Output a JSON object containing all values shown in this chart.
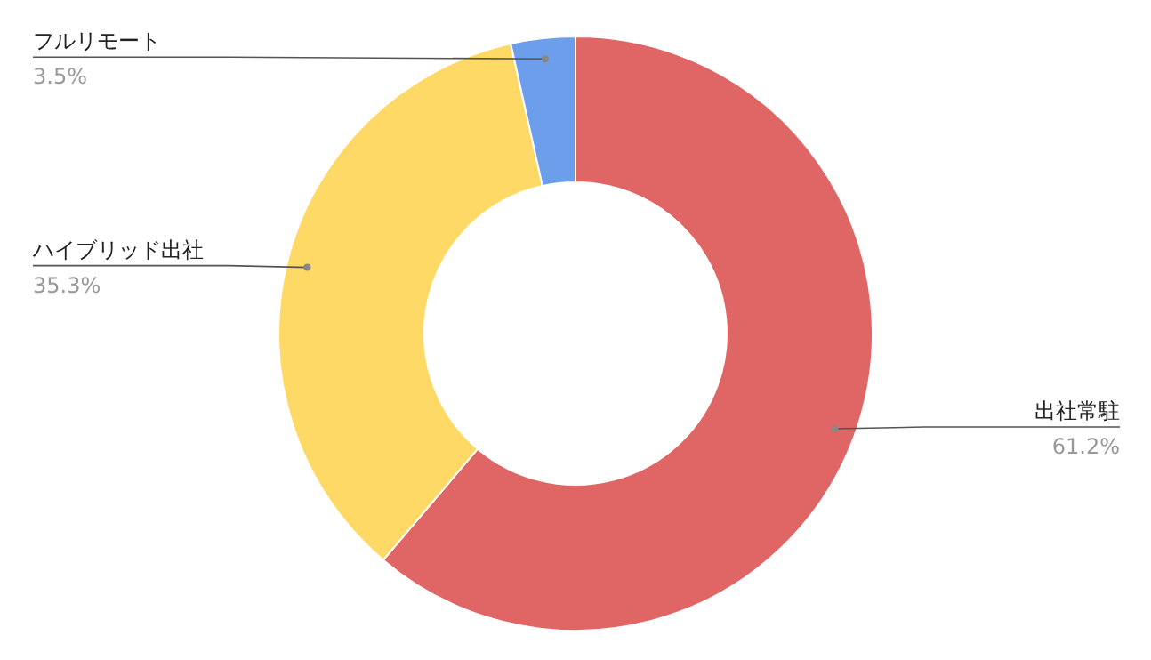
{
  "chart_data": {
    "type": "donut",
    "categories": [
      "出社常駐",
      "ハイブリッド出社",
      "フルリモート"
    ],
    "values": [
      61.2,
      35.3,
      3.5
    ],
    "colors": [
      "#e06666",
      "#ffd966",
      "#6d9eeb"
    ],
    "value_labels": [
      "61.2%",
      "35.3%",
      "3.5%"
    ]
  }
}
